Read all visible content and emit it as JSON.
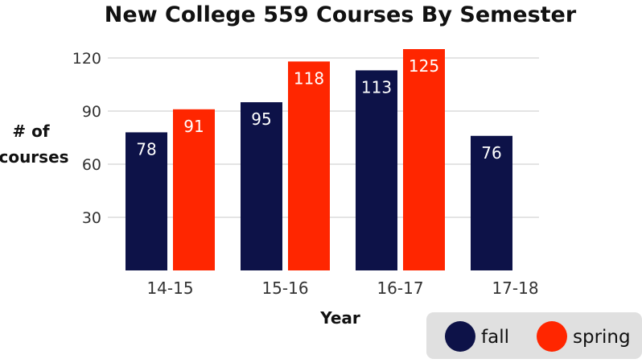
{
  "chart_data": {
    "type": "bar",
    "title": "New College 559 Courses By Semester",
    "xlabel": "Year",
    "ylabel": "# of courses",
    "categories": [
      "14-15",
      "15-16",
      "16-17",
      "17-18"
    ],
    "series": [
      {
        "name": "fall",
        "color": "#0d1248",
        "values": [
          78,
          95,
          113,
          76
        ]
      },
      {
        "name": "spring",
        "color": "#ff2600",
        "values": [
          91,
          118,
          125,
          null
        ]
      }
    ],
    "yticks": [
      30,
      60,
      90,
      120
    ],
    "ylim": [
      0,
      120
    ],
    "grid": true,
    "legend_position": "bottom-right"
  }
}
